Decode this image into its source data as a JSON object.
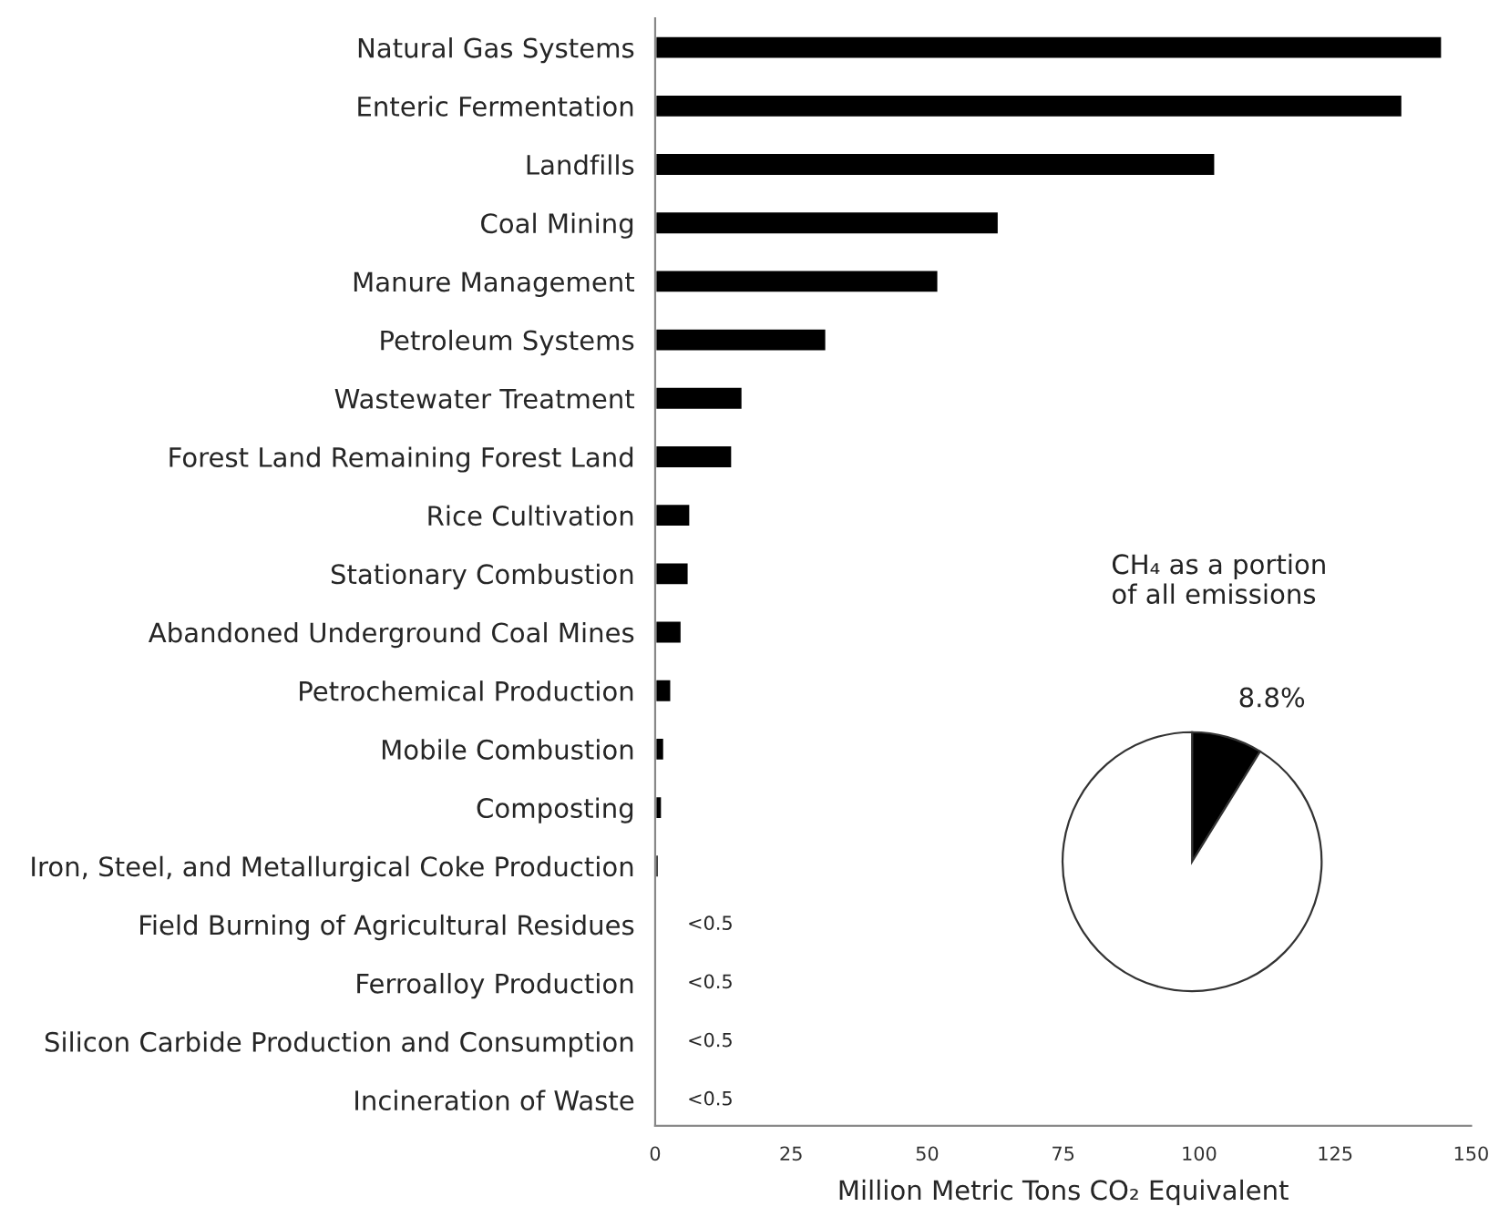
{
  "chart_data": [
    {
      "type": "bar",
      "orientation": "horizontal",
      "xlabel": "Million Metric Tons CO₂ Equivalent",
      "categories": [
        "Natural Gas Systems",
        "Enteric Fermentation",
        "Landfills",
        "Coal Mining",
        "Manure Management",
        "Petroleum Systems",
        "Wastewater Treatment",
        "Forest Land Remaining Forest Land",
        "Rice Cultivation",
        "Stationary Combustion",
        "Abandoned Underground Coal Mines",
        "Petrochemical Production",
        "Mobile Combustion",
        "Composting",
        "Iron, Steel, and Metallurgical Coke Production",
        "Field Burning of Agricultural Residues",
        "Ferroalloy Production",
        "Silicon Carbide Production and Consumption",
        "Incineration of Waste"
      ],
      "values": [
        144.7,
        137.4,
        103.0,
        63.2,
        52.1,
        31.5,
        16.1,
        14.2,
        6.5,
        6.2,
        4.9,
        3.0,
        1.7,
        1.3,
        0.7,
        0.3,
        0.3,
        0.3,
        0.3
      ],
      "value_labels": [
        null,
        null,
        null,
        null,
        null,
        null,
        null,
        null,
        null,
        null,
        null,
        null,
        null,
        null,
        null,
        "<0.5",
        "<0.5",
        "<0.5",
        "<0.5"
      ],
      "color": "#000000",
      "xlim": [
        0,
        150
      ],
      "xticks": [
        0,
        25,
        50,
        75,
        100,
        125,
        150
      ],
      "grid": false,
      "legend": false
    },
    {
      "type": "pie",
      "title": "CH₄ as a portion\nof all emissions",
      "categories": [
        null,
        null
      ],
      "values": [
        8.8,
        91.2
      ],
      "value_labels": [
        "8.8%",
        null
      ],
      "colors": [
        "#000000",
        "#ffffff"
      ],
      "legend": false
    }
  ]
}
